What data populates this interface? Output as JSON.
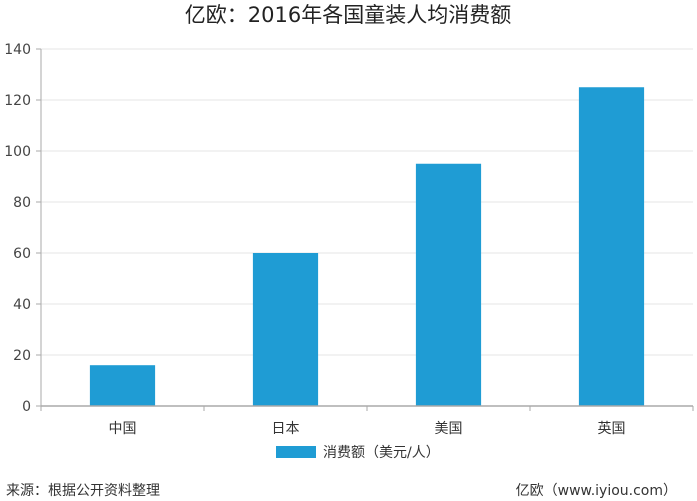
{
  "chart_data": {
    "type": "bar",
    "title": "亿欧：2016年各国童装人均消费额",
    "categories": [
      "中国",
      "日本",
      "美国",
      "英国"
    ],
    "series": [
      {
        "name": "消费额（美元/人）",
        "values": [
          16,
          60,
          95,
          125
        ],
        "color": "#1f9cd4"
      }
    ],
    "ylim": [
      0,
      140
    ],
    "yticks": [
      0,
      20,
      40,
      60,
      80,
      100,
      120,
      140
    ],
    "grid": true,
    "legend_position": "bottom"
  },
  "footer": {
    "source": "来源：根据公开资料整理",
    "credit": "亿欧（www.iyiou.com）"
  }
}
